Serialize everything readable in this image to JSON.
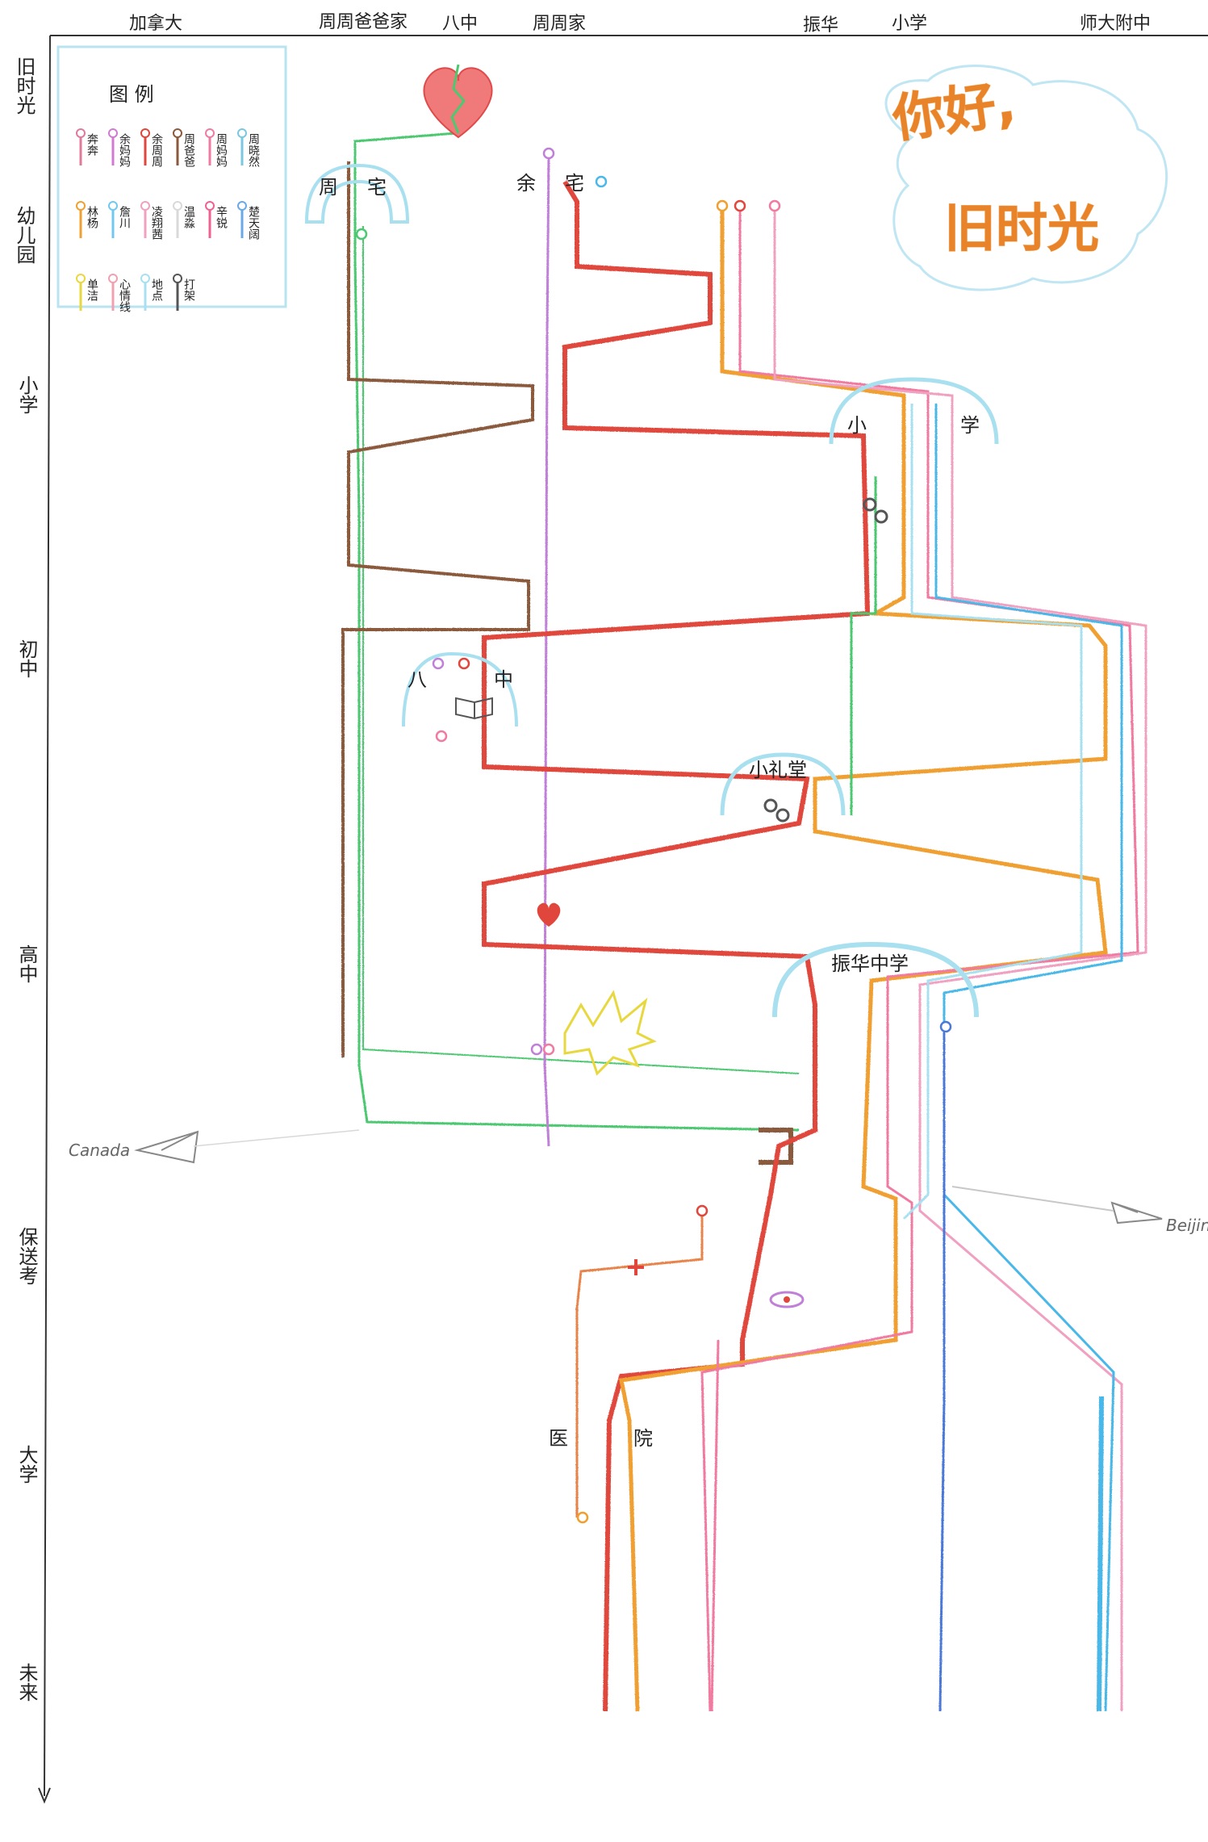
{
  "title": {
    "line1": "你好,",
    "line2": "旧时光"
  },
  "top_axis": [
    "加拿大",
    "周周爸爸家",
    "八中",
    "周周家",
    "振华",
    "小学",
    "师大附中"
  ],
  "left_axis": [
    "旧时光",
    "幼儿园",
    "小学",
    "初中",
    "高中",
    "保送考",
    "大学",
    "未来"
  ],
  "legend": {
    "title": "图 例",
    "items": [
      {
        "label": "奔奔",
        "color": "#e07a9a"
      },
      {
        "label": "余妈妈",
        "color": "#d07ad0"
      },
      {
        "label": "余周周",
        "color": "#e0463c"
      },
      {
        "label": "周爸爸",
        "color": "#8b5a3c"
      },
      {
        "label": "周妈妈",
        "color": "#f07aa0"
      },
      {
        "label": "周晓然",
        "color": "#7ac8e0"
      },
      {
        "label": "林杨",
        "color": "#f0a030"
      },
      {
        "label": "詹川",
        "color": "#70c8f0"
      },
      {
        "label": "凌翔茜",
        "color": "#f0a0c0"
      },
      {
        "label": "温淼",
        "color": "#d9d9d9"
      },
      {
        "label": "辛锐",
        "color": "#f06090"
      },
      {
        "label": "楚天阔",
        "color": "#6aa8e8"
      },
      {
        "label": "单洁",
        "color": "#e8d840"
      },
      {
        "label": "心情线",
        "color": "#f0a0b0"
      },
      {
        "label": "地点",
        "color": "#a8e0f0"
      },
      {
        "label": "打架",
        "color": "#555555"
      }
    ]
  },
  "places": [
    "周",
    "宅",
    "余",
    "宅",
    "小",
    "学",
    "八",
    "中",
    "小礼堂",
    "振华中学",
    "医",
    "院"
  ],
  "arrows": {
    "left": "Canada",
    "right": "Beijing"
  },
  "colors": {
    "red": "#e0463c",
    "green": "#4cc870",
    "orange": "#f0a030",
    "pink": "#f07aa0",
    "purple": "#c080d8",
    "brown": "#8b5a3c",
    "blue": "#4a78d8",
    "skyblue": "#4ab8e8",
    "lightblue": "#a8e0f0",
    "gray": "#9a9a9a"
  }
}
